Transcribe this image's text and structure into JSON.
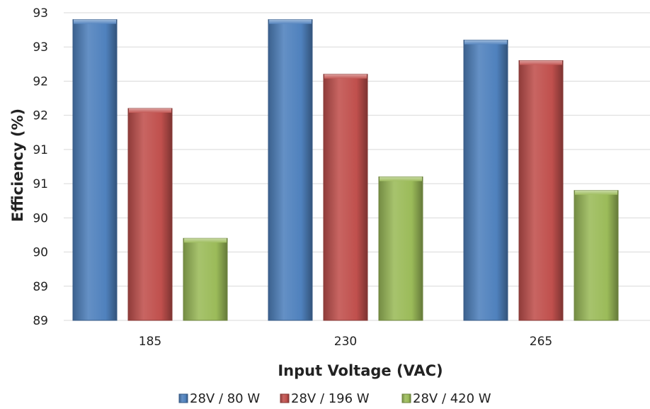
{
  "chart_data": {
    "type": "bar",
    "xlabel": "Input Voltage (VAC)",
    "ylabel": "Efficiency (%)",
    "categories": [
      "185",
      "230",
      "265"
    ],
    "series": [
      {
        "name": "28V / 80 W",
        "values": [
          92.9,
          92.9,
          92.6
        ],
        "color": "#4f81bd"
      },
      {
        "name": "28V / 196 W",
        "values": [
          91.6,
          92.1,
          92.3
        ],
        "color": "#c0504d"
      },
      {
        "name": "28V / 420 W",
        "values": [
          89.7,
          90.6,
          90.4
        ],
        "color": "#9bbb59"
      }
    ],
    "ylim": [
      88.5,
      93.0
    ],
    "yticks": [
      88.5,
      89.0,
      89.5,
      90.0,
      90.5,
      91.0,
      91.5,
      92.0,
      92.5,
      93.0
    ],
    "ytick_labels": [
      "89",
      "89",
      "90",
      "90",
      "91",
      "91",
      "92",
      "92",
      "93",
      "93"
    ],
    "grid": true,
    "legend_position": "bottom"
  }
}
